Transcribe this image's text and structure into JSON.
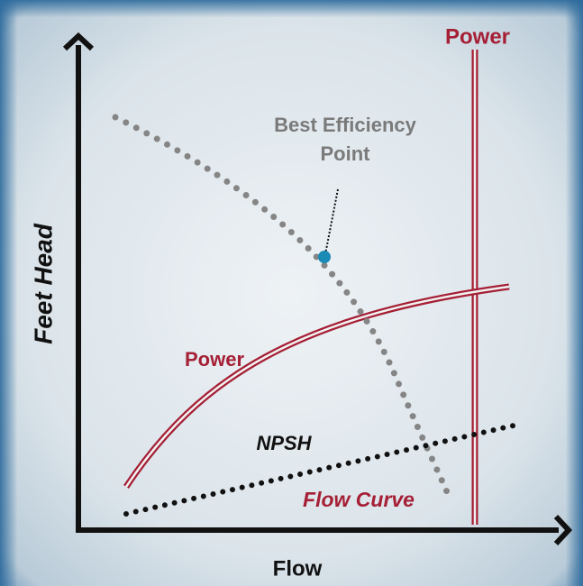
{
  "labels": {
    "power_top": "Power",
    "best_efficiency_point": {
      "line1": "Best Efficiency",
      "line2": "Point"
    },
    "y_axis": "Feet Head",
    "power_curve": "Power",
    "npsh": "NPSH",
    "flow_curve": "Flow Curve",
    "x_axis": "Flow"
  }
}
